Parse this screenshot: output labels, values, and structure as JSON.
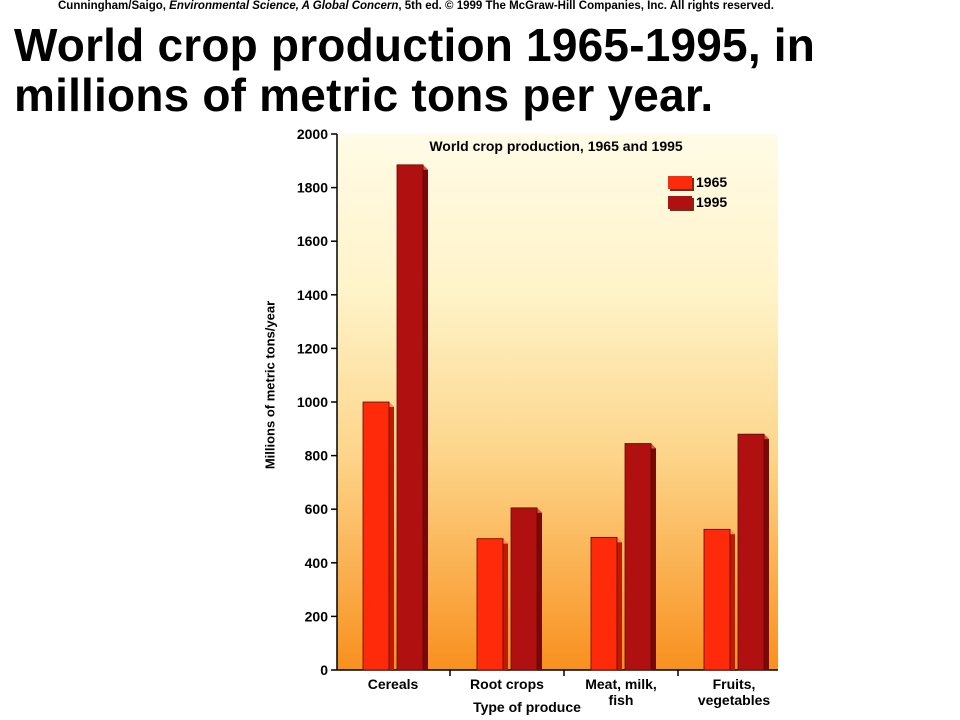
{
  "credit": {
    "authors": "Cunningham/Saigo, ",
    "book": "Environmental Science, A Global Concern",
    "rest": ", 5th ed. © 1999 The McGraw-Hill Companies, Inc. All rights reserved."
  },
  "slide_title": "World crop production 1965-1995, in\nmillions of metric tons per year.",
  "colors": {
    "series_1965": "#ff2a0a",
    "series_1995": "#b01010",
    "background_top": "#fffbe6",
    "background_bottom": "#f8901e"
  },
  "chart_data": {
    "type": "bar",
    "title": "World crop production, 1965 and 1995",
    "xlabel": "Type of produce",
    "ylabel": "Millions of metric tons/year",
    "ylim": [
      0,
      2000
    ],
    "yticks": [
      0,
      200,
      400,
      600,
      800,
      1000,
      1200,
      1400,
      1600,
      1800,
      2000
    ],
    "categories": [
      "Cereals",
      "Root crops",
      "Meat, milk,\nfish",
      "Fruits,\nvegetables"
    ],
    "series": [
      {
        "name": "1965",
        "values": [
          1000,
          490,
          495,
          525
        ]
      },
      {
        "name": "1995",
        "values": [
          1885,
          605,
          845,
          880
        ]
      }
    ],
    "legend": "top-right",
    "grid": false
  }
}
